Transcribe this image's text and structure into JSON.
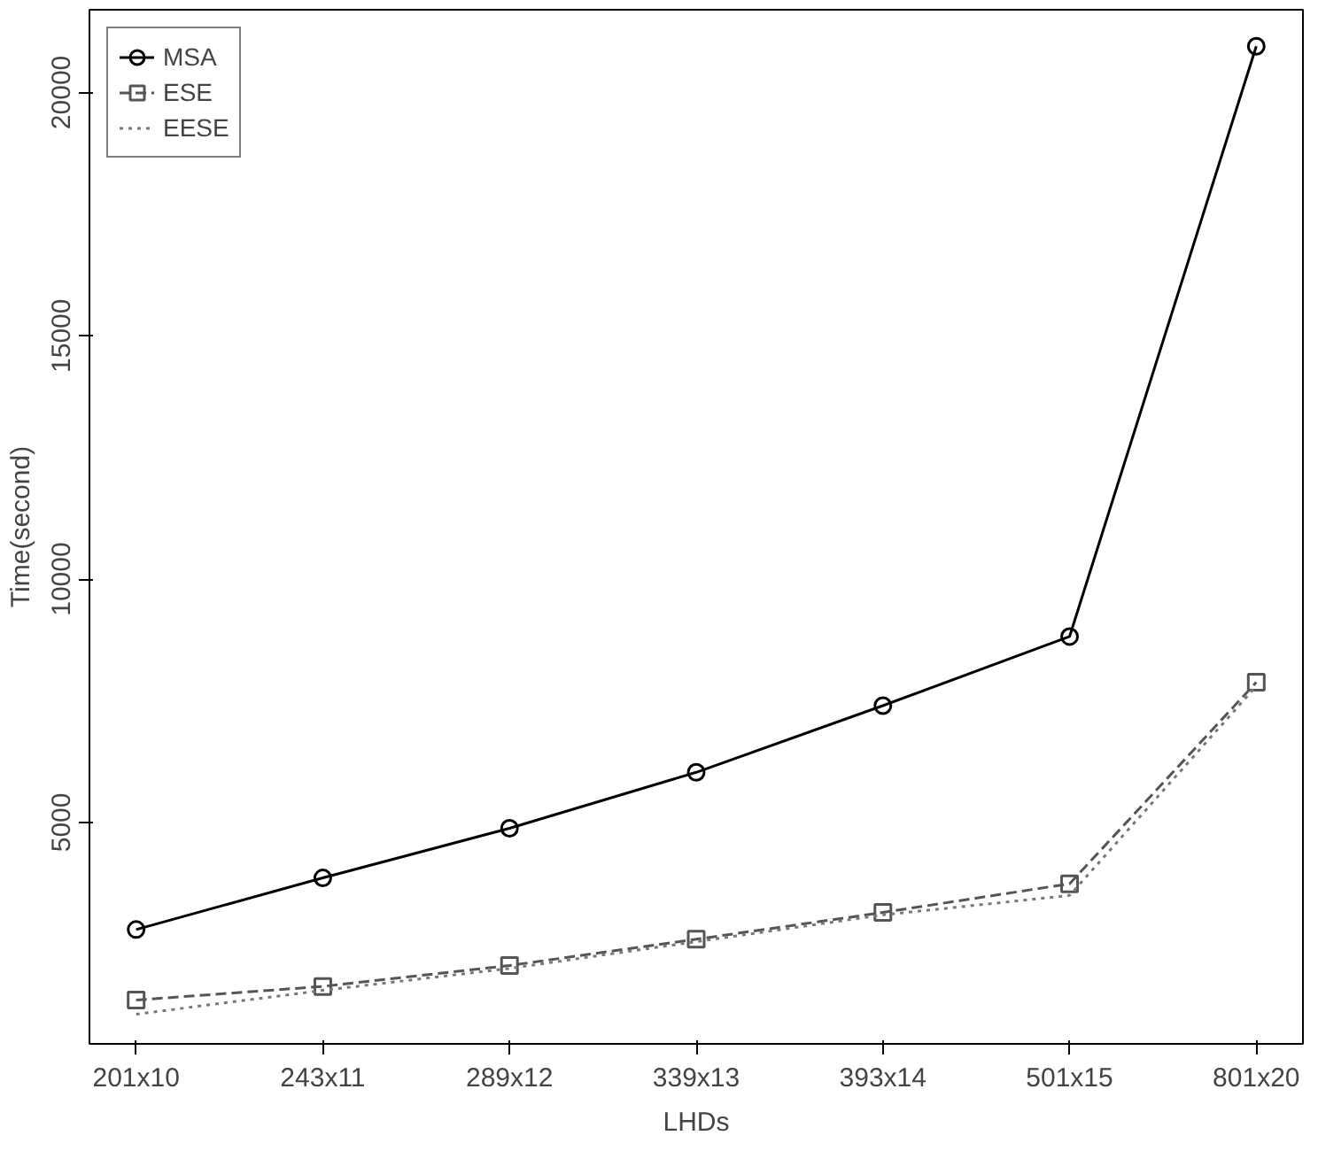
{
  "chart_data": {
    "type": "line",
    "xlabel": "LHDs",
    "ylabel": "Time(second)",
    "categories": [
      "201x10",
      "243x11",
      "289x12",
      "339x13",
      "393x14",
      "501x15",
      "801x20"
    ],
    "ylim": [
      450,
      21700
    ],
    "yticks": [
      5000,
      10000,
      15000,
      20000
    ],
    "grid": false,
    "legend": "top left",
    "series": [
      {
        "name": "MSA",
        "color": "#000000",
        "marker": "circle",
        "line_style": "solid",
        "values": [
          2800,
          3860,
          4880,
          6030,
          7400,
          8820,
          20950
        ]
      },
      {
        "name": "ESE",
        "color": "#555555",
        "marker": "square",
        "line_style": "dashed",
        "values": [
          1350,
          1630,
          2060,
          2600,
          3150,
          3740,
          7880
        ]
      },
      {
        "name": "EESE",
        "color": "#777777",
        "marker": "none",
        "line_style": "dotted",
        "values": [
          1060,
          1550,
          2000,
          2550,
          3100,
          3500,
          7800
        ]
      }
    ]
  }
}
